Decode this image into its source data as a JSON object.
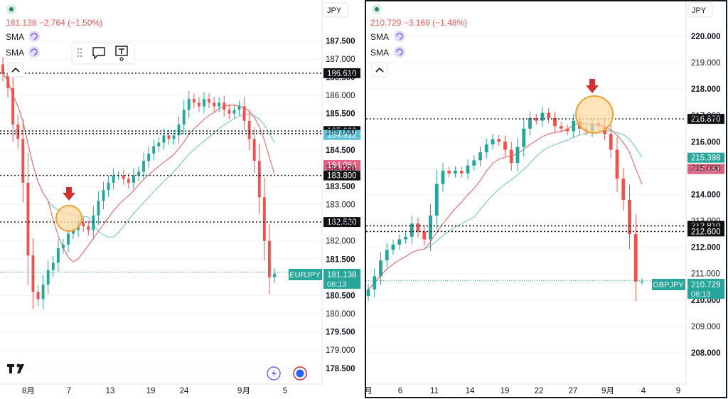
{
  "colors": {
    "up": "#26a69a",
    "down": "#ef5350",
    "price_header": "#ef5350",
    "sma_red": "#e57373",
    "sma_blue": "#80cbc4",
    "circle_fill": "#ffd9a0",
    "circle_stroke": "#f0a030",
    "arrow": "#d32f2f",
    "dark_label": "#111111",
    "pink_label": "#e25c7b",
    "teal_label": "#26a69a",
    "cyan_label": "#5bc0d6"
  },
  "left": {
    "currency": "JPY",
    "price_header": "181.138  −2.764 (−1.50%)",
    "sma_labels": [
      "SMA",
      "SMA"
    ],
    "y_ticks": [
      "187.500",
      "187.000",
      "186.500",
      "186.000",
      "185.500",
      "185.000",
      "184.500",
      "184.000",
      "183.500",
      "183.000",
      "182.500",
      "182.000",
      "181.500",
      "181.000",
      "180.500",
      "180.000",
      "179.500",
      "179.000",
      "178.500"
    ],
    "x_ticks": [
      "8月",
      "7",
      "13",
      "19",
      "24",
      "9月",
      "5"
    ],
    "levels": [
      {
        "price": "186.610",
        "style": "dark"
      },
      {
        "price": "185.020",
        "style": "dark"
      },
      {
        "price": "184.950",
        "style": "dark"
      },
      {
        "price": "184.912",
        "style": "cyan"
      },
      {
        "price": "184.084",
        "style": "pink"
      },
      {
        "price": "183.800",
        "style": "dark"
      },
      {
        "price": "182.520",
        "style": "dark"
      }
    ],
    "symbol": "EURJPY",
    "last_price": "181.138",
    "countdown": "06:13",
    "logo": "TV",
    "chart_data": {
      "type": "candlestick",
      "instrument": "EURJPY",
      "ylim": [
        178.3,
        187.8
      ],
      "closes": [
        186.6,
        186.2,
        185.2,
        184.8,
        183.6,
        181.6,
        180.6,
        180.4,
        180.8,
        181.2,
        181.4,
        181.8,
        181.9,
        182.2,
        182.3,
        182.5,
        182.4,
        182.3,
        182.7,
        183.1,
        183.4,
        183.6,
        183.8,
        183.8,
        183.7,
        183.6,
        183.8,
        183.9,
        184.2,
        184.4,
        184.6,
        184.7,
        184.9,
        184.8,
        184.9,
        185.2,
        185.6,
        185.9,
        185.8,
        185.7,
        185.9,
        185.8,
        185.7,
        185.8,
        185.6,
        185.5,
        185.6,
        185.7,
        185.3,
        184.8,
        184.2,
        183.2,
        182.0,
        181.0,
        181.1
      ]
    }
  },
  "right": {
    "currency": "JPY",
    "price_header": "210.729  −3.169 (−1.48%)",
    "sma_labels": [
      "SMA",
      "SMA"
    ],
    "y_ticks": [
      "220.000",
      "219.000",
      "218.000",
      "217.000",
      "216.000",
      "215.000",
      "214.000",
      "213.000",
      "212.000",
      "211.000",
      "210.000",
      "209.000",
      "208.000"
    ],
    "x_ticks": [
      "月",
      "6",
      "11",
      "14",
      "19",
      "22",
      "27",
      "9月",
      "4",
      "9"
    ],
    "levels": [
      {
        "price": "216.870",
        "style": "dark"
      },
      {
        "price": "215.398",
        "style": "teal"
      },
      {
        "price": "214.967",
        "style": "pink"
      },
      {
        "price": "212.810",
        "style": "dark"
      },
      {
        "price": "212.600",
        "style": "dark"
      }
    ],
    "symbol": "GBPJPY",
    "last_price": "210.729",
    "countdown": "06:13",
    "chart_data": {
      "type": "candlestick",
      "instrument": "GBPJPY",
      "ylim": [
        207.7,
        220.3
      ],
      "closes": [
        210.4,
        210.9,
        211.5,
        211.9,
        212.1,
        212.3,
        212.4,
        212.9,
        212.6,
        212.3,
        213.2,
        214.4,
        214.9,
        214.8,
        214.9,
        214.8,
        215.1,
        215.3,
        215.6,
        215.9,
        216.1,
        216.0,
        215.7,
        215.2,
        215.8,
        216.5,
        216.9,
        216.8,
        217.1,
        216.9,
        216.6,
        216.5,
        216.4,
        216.8,
        216.5,
        216.4,
        216.7,
        216.6,
        216.3,
        215.7,
        214.6,
        213.8,
        212.5,
        210.7,
        210.7
      ]
    }
  }
}
